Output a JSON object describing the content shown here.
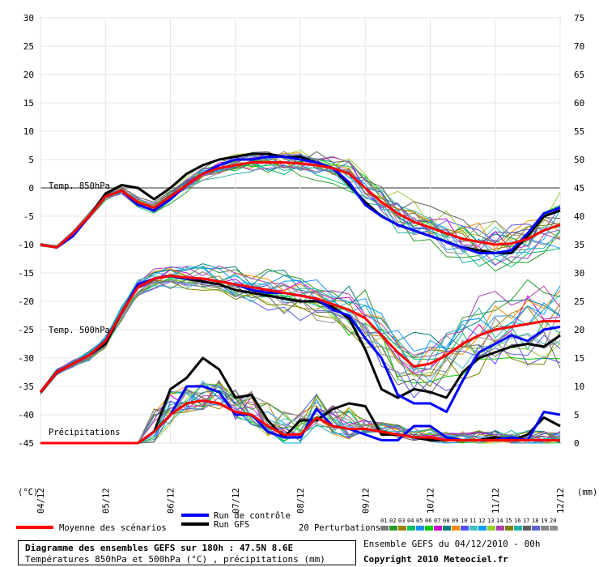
{
  "chart_data": {
    "type": "line",
    "title": "Diagramme des ensembles GEFS sur 180h : 47.5N 8.6E",
    "subtitle": "Températures 850hPa et 500hPa (°C) , précipitations (mm)",
    "left_axis": {
      "unit_label": "(°C)",
      "range": [
        -45,
        30
      ],
      "ticks": [
        30,
        25,
        20,
        15,
        10,
        5,
        0,
        -5,
        -10,
        -15,
        -20,
        -25,
        -30,
        -35,
        -40,
        -45
      ]
    },
    "right_axis": {
      "unit_label": "(mm)",
      "range": [
        0,
        75
      ],
      "ticks": [
        75,
        70,
        65,
        60,
        55,
        50,
        45,
        40,
        35,
        30,
        25,
        20,
        15,
        10,
        5,
        0
      ]
    },
    "x_labels": [
      "04/12",
      "05/12",
      "06/12",
      "07/12",
      "08/12",
      "09/12",
      "10/12",
      "11/12",
      "12/12"
    ],
    "hours_per_step": 6,
    "total_hours": 192,
    "section_labels": {
      "t850": "Temp. 850hPa",
      "t500": "Temp. 500hPa",
      "precip": "Précipitations"
    },
    "legend": {
      "mean": "Moyenne des scénarios",
      "control": "Run de contrôle",
      "gfs": "Run GFS",
      "perturbations": "20 Perturbations",
      "perturbation_numbers": [
        "01",
        "02",
        "03",
        "04",
        "05",
        "06",
        "07",
        "08",
        "09",
        "10",
        "11",
        "12",
        "13",
        "14",
        "15",
        "16",
        "17",
        "18",
        "19",
        "20"
      ]
    },
    "colors": {
      "mean": "#ff0000",
      "control": "#0000ff",
      "gfs": "#000000",
      "zero_line": "#999999",
      "perturbations": [
        "#7a7a7a",
        "#2a9a2a",
        "#a08000",
        "#00c060",
        "#1e90ff",
        "#00cc00",
        "#cc00cc",
        "#008080",
        "#ff8c00",
        "#5050ff",
        "#40c0c0",
        "#00a0ff",
        "#9acd32",
        "#b040b0",
        "#808000",
        "#20b2aa",
        "#606060",
        "#6060d0",
        "#888888",
        "#909090"
      ]
    },
    "series": {
      "t850_mean": [
        -10,
        -10.5,
        -8,
        -5,
        -1.5,
        -0.5,
        -2.5,
        -3.5,
        -1.5,
        0.5,
        2.5,
        3.5,
        4,
        4.5,
        4.5,
        4.5,
        4.3,
        4,
        3.5,
        2.5,
        0,
        -2.5,
        -4.5,
        -6,
        -7,
        -8,
        -9,
        -9.5,
        -10,
        -9.8,
        -9,
        -7.5,
        -6.5
      ],
      "t850_control": [
        -10,
        -10.5,
        -8.5,
        -5,
        -1.5,
        -0.5,
        -3,
        -4,
        -2,
        0.5,
        2.5,
        4,
        5,
        5,
        5.5,
        5.5,
        5,
        4.5,
        3.5,
        1,
        -3,
        -5,
        -6.5,
        -7.5,
        -8.5,
        -9.5,
        -10.5,
        -11.5,
        -11.5,
        -11,
        -8,
        -4.5,
        -3.5
      ],
      "t850_gfs": [
        -10,
        -10.5,
        -8.5,
        -5,
        -1,
        0.5,
        0,
        -2,
        0,
        2.5,
        4,
        5,
        5.5,
        6,
        6,
        5.5,
        5.5,
        4.5,
        3.5,
        0.5,
        -2.5,
        -5,
        -6.5,
        -7.5,
        -8.5,
        -9.5,
        -10.5,
        -11,
        -11.5,
        -11.5,
        -8.5,
        -5,
        -4
      ],
      "t500_mean": [
        -36,
        -32.5,
        -31,
        -29.5,
        -27,
        -22,
        -17.5,
        -16,
        -15.5,
        -15.8,
        -16,
        -16.5,
        -17,
        -17.5,
        -18,
        -18.5,
        -19,
        -19.5,
        -20.5,
        -21.5,
        -23,
        -26,
        -29,
        -31.5,
        -31,
        -29.5,
        -27.5,
        -26,
        -25,
        -24.5,
        -24,
        -23.5,
        -23.5
      ],
      "t500_control": [
        -36,
        -32.5,
        -31,
        -29.5,
        -27,
        -22,
        -17,
        -16,
        -15.5,
        -16,
        -16,
        -16.5,
        -17,
        -18,
        -18.5,
        -18.5,
        -19,
        -19.5,
        -21.5,
        -22.5,
        -26.5,
        -30,
        -36.5,
        -38,
        -38,
        -39.5,
        -34,
        -29,
        -27.5,
        -26,
        -27,
        -25,
        -24.5
      ],
      "t500_gfs": [
        -36,
        -32.5,
        -31,
        -29.5,
        -27.5,
        -22,
        -17.5,
        -16,
        -15.5,
        -16,
        -16.5,
        -17,
        -18,
        -18.5,
        -19,
        -19.5,
        -20,
        -20,
        -21,
        -23,
        -28.5,
        -35.5,
        -37,
        -35.5,
        -36,
        -37,
        -32.5,
        -30,
        -29,
        -28,
        -27.5,
        -28,
        -26
      ]
    },
    "precip_mm": {
      "mean": [
        0,
        0,
        0,
        0,
        0,
        0,
        0,
        2,
        5,
        7,
        7.5,
        7,
        5.5,
        5,
        3,
        1.5,
        1.5,
        4.5,
        3,
        2.5,
        2.5,
        2,
        1.5,
        1,
        1,
        0.5,
        0.5,
        0.5,
        0.5,
        0.5,
        0.5,
        0.5,
        0.5
      ],
      "control": [
        0,
        0,
        0,
        0,
        0,
        0,
        0,
        2,
        5,
        10,
        10,
        9,
        5,
        5,
        2,
        1,
        1,
        6,
        3,
        2.5,
        1.5,
        0.5,
        0.5,
        3,
        3,
        1,
        0.5,
        0.5,
        0.5,
        1,
        0.5,
        5.5,
        5
      ],
      "gfs": [
        0,
        0,
        0,
        0,
        0,
        0,
        0,
        2,
        9.5,
        11.5,
        15,
        13,
        8,
        8.5,
        4,
        1,
        4,
        4,
        6,
        7,
        6.5,
        1.5,
        1.5,
        1,
        0.5,
        0.5,
        0.5,
        0.5,
        1,
        0.5,
        1.5,
        4.5,
        3
      ]
    }
  }
}
